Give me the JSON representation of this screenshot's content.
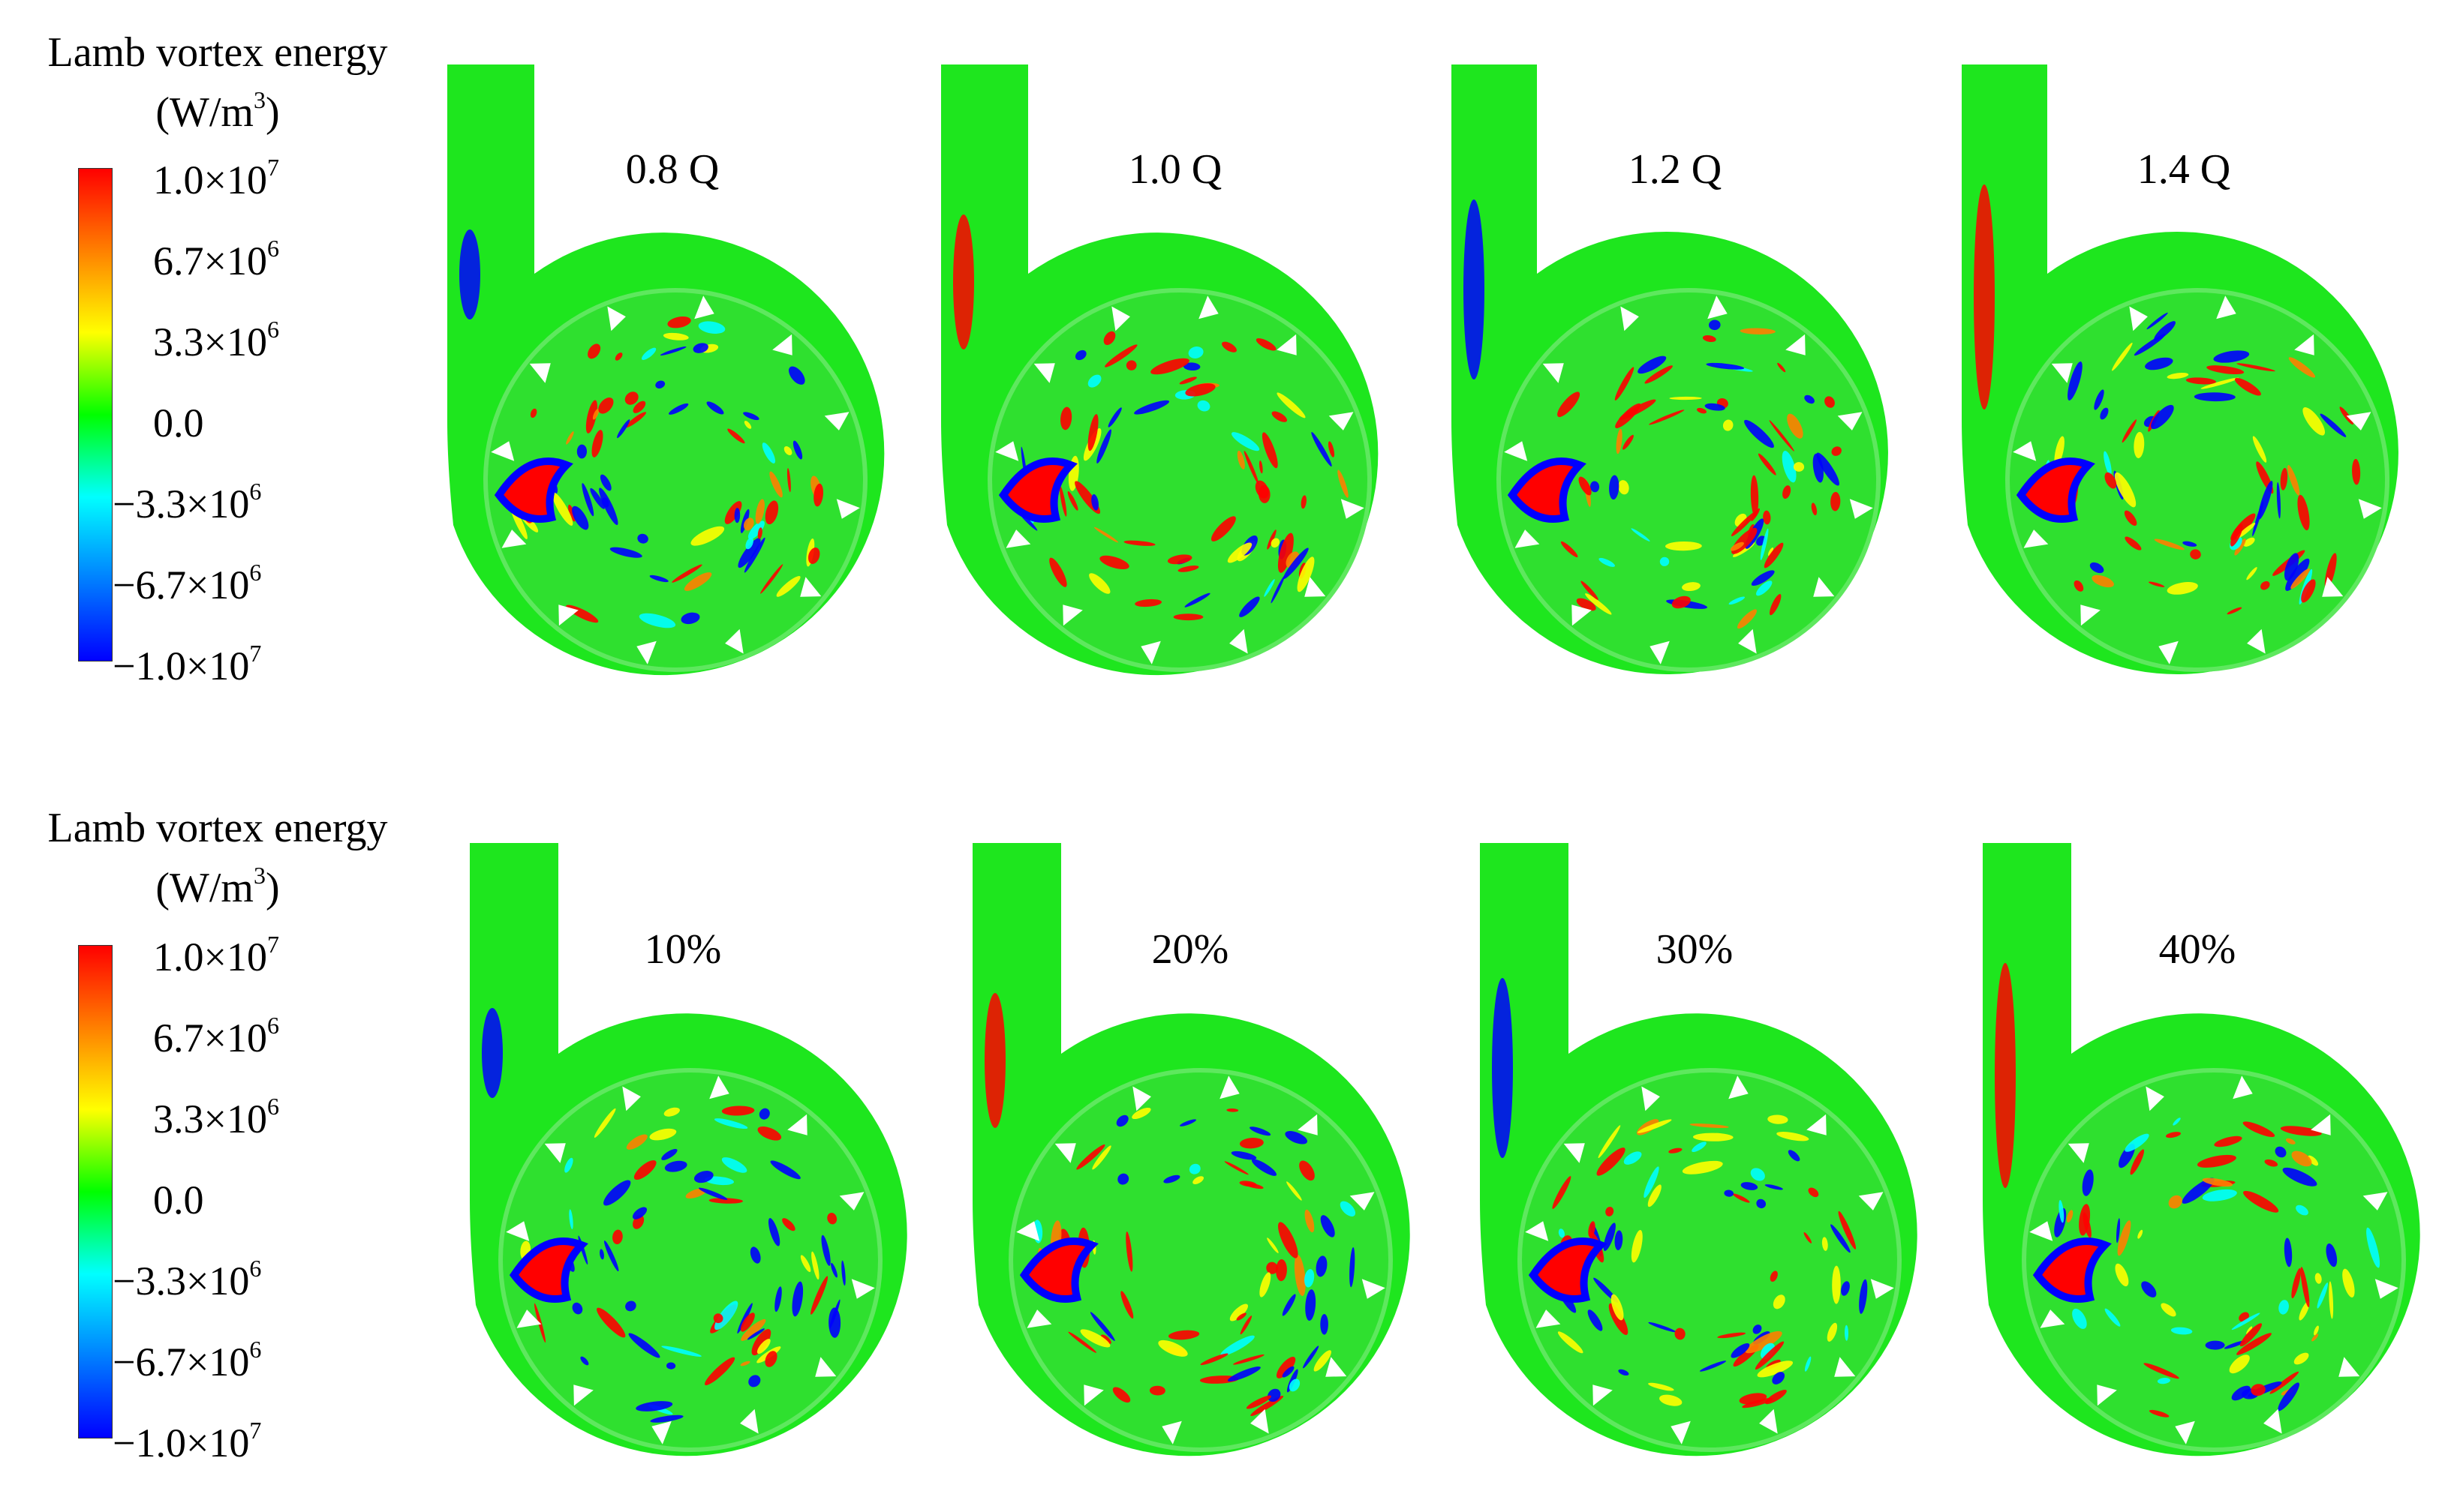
{
  "colormap": [
    "#ff0000",
    "#ff8000",
    "#ffff00",
    "#00ff00",
    "#00ffff",
    "#0080ff",
    "#0000ff"
  ],
  "field_color": "#1ee61e",
  "rows": [
    {
      "legend": {
        "title_line1": "Lamb vortex energy",
        "title_line2": "(W/m",
        "title_sup": "3",
        "title_close": ")",
        "ticks": [
          {
            "mantissa": "1.0×10",
            "exp": "7"
          },
          {
            "mantissa": "6.7×10",
            "exp": "6"
          },
          {
            "mantissa": "3.3×10",
            "exp": "6"
          },
          {
            "mantissa": "0.0",
            "exp": ""
          },
          {
            "mantissa": "−3.3×10",
            "exp": "6"
          },
          {
            "mantissa": "−6.7×10",
            "exp": "6"
          },
          {
            "mantissa": "−1.0×10",
            "exp": "7"
          }
        ]
      },
      "panels": [
        {
          "label": "0.8 Q"
        },
        {
          "label": "1.0 Q"
        },
        {
          "label": "1.2 Q"
        },
        {
          "label": "1.4 Q"
        }
      ]
    },
    {
      "legend": {
        "title_line1": "Lamb vortex energy",
        "title_line2": "(W/m",
        "title_sup": "3",
        "title_close": ")",
        "ticks": [
          {
            "mantissa": "1.0×10",
            "exp": "7"
          },
          {
            "mantissa": "6.7×10",
            "exp": "6"
          },
          {
            "mantissa": "3.3×10",
            "exp": "6"
          },
          {
            "mantissa": "0.0",
            "exp": ""
          },
          {
            "mantissa": "−3.3×10",
            "exp": "6"
          },
          {
            "mantissa": "−6.7×10",
            "exp": "6"
          },
          {
            "mantissa": "−1.0×10",
            "exp": "7"
          }
        ]
      },
      "panels": [
        {
          "label": "10%"
        },
        {
          "label": "20%"
        },
        {
          "label": "30%"
        },
        {
          "label": "40%"
        }
      ]
    }
  ]
}
